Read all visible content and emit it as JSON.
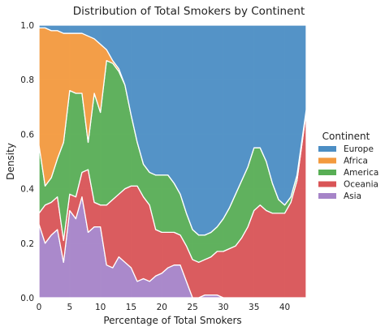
{
  "chart_data": {
    "type": "area",
    "title": "Distribution of Total Smokers by Continent",
    "xlabel": "Percentage of Total Smokers",
    "ylabel": "Density",
    "xlim": [
      0,
      43.5
    ],
    "ylim": [
      0,
      1
    ],
    "xticks": [
      "0",
      "5",
      "10",
      "15",
      "20",
      "25",
      "30",
      "35",
      "40"
    ],
    "xtick_values": [
      0,
      5,
      10,
      15,
      20,
      25,
      30,
      35,
      40
    ],
    "yticks": [
      "0.0",
      "0.2",
      "0.4",
      "0.6",
      "0.8",
      "1.0"
    ],
    "ytick_values": [
      0,
      0.2,
      0.4,
      0.6,
      0.8,
      1.0
    ],
    "grid": true,
    "stacking": "fill",
    "legend": {
      "title": "Continent",
      "placement": "right"
    },
    "x": [
      0,
      1,
      2,
      3,
      4,
      5,
      6,
      7,
      8,
      9,
      10,
      11,
      12,
      13,
      14,
      15,
      16,
      17,
      18,
      19,
      20,
      21,
      22,
      23,
      24,
      25,
      26,
      27,
      28,
      29,
      30,
      31,
      32,
      33,
      34,
      35,
      36,
      37,
      38,
      39,
      40,
      41,
      42,
      43.5
    ],
    "stack_order_bottom_to_top": [
      "Asia",
      "Oceania",
      "America",
      "Africa",
      "Europe"
    ],
    "series": [
      {
        "name": "Europe",
        "color": "#4c8ec4",
        "values": [
          0.01,
          0.01,
          0.02,
          0.02,
          0.03,
          0.03,
          0.03,
          0.03,
          0.04,
          0.05,
          0.07,
          0.09,
          0.13,
          0.16,
          0.22,
          0.33,
          0.43,
          0.51,
          0.54,
          0.55,
          0.55,
          0.55,
          0.58,
          0.62,
          0.69,
          0.75,
          0.77,
          0.77,
          0.76,
          0.74,
          0.71,
          0.67,
          0.62,
          0.57,
          0.52,
          0.45,
          0.45,
          0.5,
          0.58,
          0.64,
          0.66,
          0.63,
          0.55,
          0.31
        ]
      },
      {
        "name": "Africa",
        "color": "#f39a3e",
        "values": [
          0.43,
          0.58,
          0.54,
          0.47,
          0.4,
          0.21,
          0.22,
          0.22,
          0.39,
          0.2,
          0.25,
          0.04,
          0.01,
          0.01,
          0,
          0,
          0,
          0,
          0,
          0,
          0,
          0,
          0,
          0,
          0,
          0,
          0,
          0,
          0,
          0,
          0,
          0,
          0,
          0,
          0,
          0,
          0,
          0,
          0,
          0,
          0,
          0,
          0,
          0
        ]
      },
      {
        "name": "America",
        "color": "#58ae55",
        "values": [
          0.25,
          0.07,
          0.09,
          0.14,
          0.36,
          0.38,
          0.38,
          0.29,
          0.1,
          0.4,
          0.34,
          0.53,
          0.5,
          0.45,
          0.38,
          0.26,
          0.16,
          0.12,
          0.12,
          0.2,
          0.21,
          0.21,
          0.18,
          0.15,
          0.12,
          0.11,
          0.1,
          0.09,
          0.09,
          0.09,
          0.12,
          0.15,
          0.19,
          0.21,
          0.22,
          0.23,
          0.21,
          0.18,
          0.11,
          0.05,
          0.03,
          0.02,
          0.02,
          0.01
        ]
      },
      {
        "name": "Oceania",
        "color": "#d95456",
        "values": [
          0.04,
          0.14,
          0.12,
          0.12,
          0.08,
          0.06,
          0.08,
          0.09,
          0.23,
          0.09,
          0.08,
          0.22,
          0.25,
          0.23,
          0.27,
          0.3,
          0.35,
          0.3,
          0.28,
          0.17,
          0.15,
          0.13,
          0.12,
          0.11,
          0.13,
          0.14,
          0.13,
          0.13,
          0.14,
          0.16,
          0.17,
          0.18,
          0.19,
          0.22,
          0.26,
          0.32,
          0.34,
          0.32,
          0.31,
          0.31,
          0.31,
          0.35,
          0.43,
          0.68
        ]
      },
      {
        "name": "Asia",
        "color": "#a684c8",
        "values": [
          0.27,
          0.2,
          0.23,
          0.25,
          0.13,
          0.32,
          0.29,
          0.37,
          0.24,
          0.26,
          0.26,
          0.12,
          0.11,
          0.15,
          0.13,
          0.11,
          0.06,
          0.07,
          0.06,
          0.08,
          0.09,
          0.11,
          0.12,
          0.12,
          0.06,
          0,
          0,
          0.01,
          0.01,
          0.01,
          0,
          0,
          0,
          0,
          0,
          0,
          0,
          0,
          0,
          0,
          0,
          0,
          0,
          0
        ]
      }
    ]
  }
}
